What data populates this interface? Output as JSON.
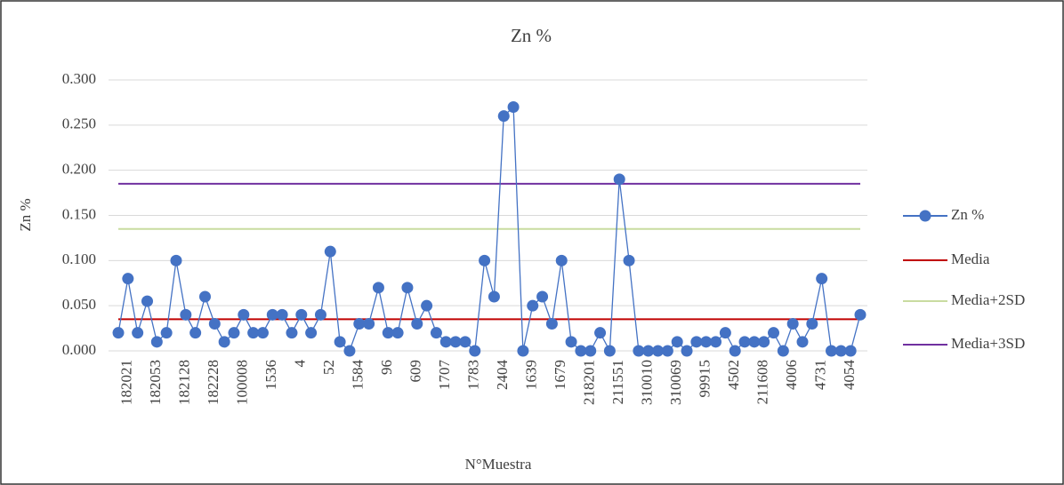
{
  "chart_data": {
    "type": "line",
    "title": "Zn %",
    "x_label": "N°Muestra",
    "y_label": "Zn %",
    "categories": [
      null,
      "182021",
      null,
      null,
      "182053",
      null,
      null,
      "182128",
      null,
      null,
      "182228",
      null,
      null,
      "100008",
      null,
      null,
      "1536",
      null,
      null,
      "4",
      null,
      null,
      "52",
      null,
      null,
      "1584",
      null,
      null,
      "96",
      null,
      null,
      "609",
      null,
      null,
      "1707",
      null,
      null,
      "1783",
      null,
      null,
      "2404",
      null,
      null,
      "1639",
      null,
      null,
      "1679",
      null,
      null,
      "218201",
      null,
      null,
      "211551",
      null,
      null,
      "310010",
      null,
      null,
      "310069",
      null,
      null,
      "99915",
      null,
      null,
      "4502",
      null,
      null,
      "211608",
      null,
      null,
      "4006",
      null,
      null,
      "4731",
      null,
      null,
      "4054",
      null
    ],
    "series": [
      {
        "name": "Zn %",
        "color": "#4472c4",
        "markers": true,
        "values": [
          0.02,
          0.08,
          0.02,
          0.055,
          0.01,
          0.02,
          0.1,
          0.04,
          0.02,
          0.06,
          0.03,
          0.01,
          0.02,
          0.04,
          0.02,
          0.02,
          0.04,
          0.04,
          0.02,
          0.04,
          0.02,
          0.04,
          0.11,
          0.01,
          0,
          0.03,
          0.03,
          0.07,
          0.02,
          0.02,
          0.07,
          0.03,
          0.05,
          0.02,
          0.01,
          0.01,
          0.01,
          0,
          0.1,
          0.06,
          0.26,
          0.27,
          0,
          0.05,
          0.06,
          0.03,
          0.1,
          0.01,
          0,
          0,
          0.02,
          0,
          0.19,
          0.1,
          0,
          0,
          0,
          0,
          0.01,
          0,
          0.01,
          0.01,
          0.01,
          0.02,
          0,
          0.01,
          0.01,
          0.01,
          0.02,
          0,
          0.03,
          0.01,
          0.03,
          0.08,
          0,
          0,
          0,
          0.04
        ]
      },
      {
        "name": "Media",
        "color": "#c00000",
        "markers": false,
        "values": [
          0.035,
          0.035,
          0.035,
          0.035,
          0.035,
          0.035,
          0.035,
          0.035,
          0.035,
          0.035,
          0.035,
          0.035,
          0.035,
          0.035,
          0.035,
          0.035,
          0.035,
          0.035,
          0.035,
          0.035,
          0.035,
          0.035,
          0.035,
          0.035,
          0.035,
          0.035,
          0.035,
          0.035,
          0.035,
          0.035,
          0.035,
          0.035,
          0.035,
          0.035,
          0.035,
          0.035,
          0.035,
          0.035,
          0.035,
          0.035,
          0.035,
          0.035,
          0.035,
          0.035,
          0.035,
          0.035,
          0.035,
          0.035,
          0.035,
          0.035,
          0.035,
          0.035,
          0.035,
          0.035,
          0.035,
          0.035,
          0.035,
          0.035,
          0.035,
          0.035,
          0.035,
          0.035,
          0.035,
          0.035,
          0.035,
          0.035,
          0.035,
          0.035,
          0.035,
          0.035,
          0.035,
          0.035,
          0.035,
          0.035,
          0.035,
          0.035,
          0.035,
          0.035
        ]
      },
      {
        "name": "Media+2SD",
        "color": "#c9dca0",
        "markers": false,
        "values": [
          0.135,
          0.135,
          0.135,
          0.135,
          0.135,
          0.135,
          0.135,
          0.135,
          0.135,
          0.135,
          0.135,
          0.135,
          0.135,
          0.135,
          0.135,
          0.135,
          0.135,
          0.135,
          0.135,
          0.135,
          0.135,
          0.135,
          0.135,
          0.135,
          0.135,
          0.135,
          0.135,
          0.135,
          0.135,
          0.135,
          0.135,
          0.135,
          0.135,
          0.135,
          0.135,
          0.135,
          0.135,
          0.135,
          0.135,
          0.135,
          0.135,
          0.135,
          0.135,
          0.135,
          0.135,
          0.135,
          0.135,
          0.135,
          0.135,
          0.135,
          0.135,
          0.135,
          0.135,
          0.135,
          0.135,
          0.135,
          0.135,
          0.135,
          0.135,
          0.135,
          0.135,
          0.135,
          0.135,
          0.135,
          0.135,
          0.135,
          0.135,
          0.135,
          0.135,
          0.135,
          0.135,
          0.135,
          0.135,
          0.135,
          0.135,
          0.135,
          0.135,
          0.135
        ]
      },
      {
        "name": "Media+3SD",
        "color": "#7030a0",
        "markers": false,
        "values": [
          0.185,
          0.185,
          0.185,
          0.185,
          0.185,
          0.185,
          0.185,
          0.185,
          0.185,
          0.185,
          0.185,
          0.185,
          0.185,
          0.185,
          0.185,
          0.185,
          0.185,
          0.185,
          0.185,
          0.185,
          0.185,
          0.185,
          0.185,
          0.185,
          0.185,
          0.185,
          0.185,
          0.185,
          0.185,
          0.185,
          0.185,
          0.185,
          0.185,
          0.185,
          0.185,
          0.185,
          0.185,
          0.185,
          0.185,
          0.185,
          0.185,
          0.185,
          0.185,
          0.185,
          0.185,
          0.185,
          0.185,
          0.185,
          0.185,
          0.185,
          0.185,
          0.185,
          0.185,
          0.185,
          0.185,
          0.185,
          0.185,
          0.185,
          0.185,
          0.185,
          0.185,
          0.185,
          0.185,
          0.185,
          0.185,
          0.185,
          0.185,
          0.185,
          0.185,
          0.185,
          0.185,
          0.185,
          0.185,
          0.185,
          0.185,
          0.185,
          0.185,
          0.185
        ]
      }
    ],
    "ylim": [
      0,
      0.3
    ],
    "yticks": [
      {
        "value": 0,
        "label": "0.000"
      },
      {
        "value": 0.05,
        "label": "0.050"
      },
      {
        "value": 0.1,
        "label": "0.100"
      },
      {
        "value": 0.15,
        "label": "0.150"
      },
      {
        "value": 0.2,
        "label": "0.200"
      },
      {
        "value": 0.25,
        "label": "0.250"
      },
      {
        "value": 0.3,
        "label": "0.300"
      }
    ],
    "grid": true,
    "legend": "right"
  }
}
